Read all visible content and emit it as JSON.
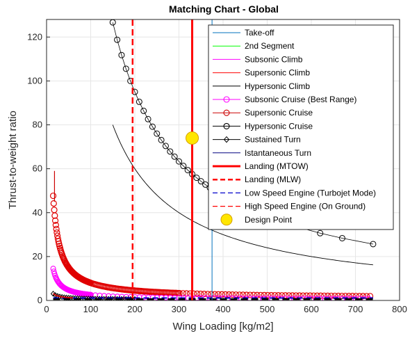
{
  "chart_data": {
    "type": "line",
    "title": "Matching Chart - Global",
    "xlabel": "Wing Loading [kg/m2]",
    "ylabel": "Thrust-to-weight ratio",
    "xlim": [
      0,
      800
    ],
    "ylim": [
      0,
      128
    ],
    "xticks": [
      "0",
      "100",
      "200",
      "300",
      "400",
      "500",
      "600",
      "700",
      "800"
    ],
    "yticks": [
      "0",
      "20",
      "40",
      "60",
      "80",
      "100",
      "120"
    ],
    "grid": true,
    "legend_position": "top-right",
    "series": [
      {
        "name": "Take-off",
        "color": "#0072BD",
        "kind": "vline",
        "x": 375
      },
      {
        "name": "2nd Segment",
        "color": "#00FF00",
        "kind": "curve",
        "k": 0,
        "c": 0.3
      },
      {
        "name": "Subsonic Climb",
        "color": "#FF00FF",
        "kind": "curve",
        "k": 200,
        "c": 0.2
      },
      {
        "name": "Supersonic Climb",
        "color": "#FF0000",
        "kind": "curve",
        "k": 500,
        "c": 0.5
      },
      {
        "name": "Hypersonic Climb",
        "color": "#000000",
        "kind": "curve",
        "k": 19000,
        "c": 0
      },
      {
        "name": "Subsonic Cruise (Best Range)",
        "color": "#FF00FF",
        "kind": "curve-marker",
        "marker": "circle",
        "k": 30,
        "c": 0.3
      },
      {
        "name": "Supersonic Cruise",
        "color": "#CC0000",
        "kind": "curve-marker",
        "marker": "circle",
        "k": 400,
        "c": 0.5
      },
      {
        "name": "Hypersonic Cruise",
        "color": "#000000",
        "kind": "curve-marker",
        "marker": "circle",
        "k": 19000,
        "c": 0,
        "x_markers": [
          150,
          160,
          170,
          180,
          190,
          200,
          210,
          220,
          230,
          240,
          250,
          260,
          270,
          280,
          290,
          300,
          310,
          320,
          330,
          340,
          350,
          360,
          370,
          390,
          410,
          440,
          470,
          510,
          560,
          620,
          670,
          740
        ]
      },
      {
        "name": "Sustained Turn",
        "color": "#000000",
        "kind": "curve-marker",
        "marker": "diamond",
        "k": 40,
        "c": 0.3
      },
      {
        "name": "Istantaneous Turn",
        "color": "#000080",
        "kind": "curve",
        "k": 35,
        "c": 0.2
      },
      {
        "name": "Landing (MTOW)",
        "color": "#FF0000",
        "kind": "vline-thick",
        "x": 330
      },
      {
        "name": "Landing (MLW)",
        "color": "#FF0000",
        "kind": "vline-dashed",
        "x": 195
      },
      {
        "name": "Low Speed Engine (Turbojet Mode)",
        "color": "#0000CC",
        "kind": "hline-dashed",
        "y": 0.8
      },
      {
        "name": "High Speed Engine (On Ground)",
        "color": "#FF0000",
        "kind": "hline-dashed",
        "y": 0.5
      },
      {
        "name": "Design Point",
        "color": "#FFE600",
        "kind": "point",
        "x": 330,
        "y": 74
      }
    ],
    "extra": {
      "landing_dense_k": 700,
      "landing_dense_c": 1.0,
      "magenta_dense_k": 210,
      "magenta_dense_c": 0.5
    }
  }
}
